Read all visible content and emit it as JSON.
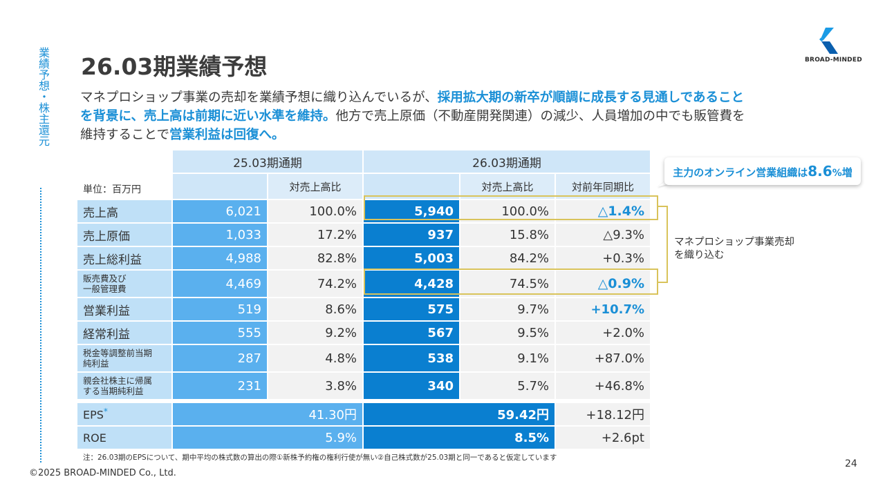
{
  "side_label": "業績予想・株主還元",
  "title": "26.03期業績予想",
  "logo_text": "BROAD-MINDED",
  "lead": {
    "p1": "マネプロショップ事業の売却を業績予想に織り込んでいるが、",
    "p2": "採用拡大期の新卒が順調に成長する見通しであること",
    "p3": "を背景に、売上高は前期に近い水準を維持。",
    "p4": "他方で売上原価（不動産開発関連）の減少、人員増加の中でも販管費を",
    "p5": "維持することで",
    "p6": "営業利益は回復へ。"
  },
  "table": {
    "period_prev": "25.03期通期",
    "period_curr": "26.03期通期",
    "unit": "単位：百万円",
    "col_ratio_prev": "対売上高比",
    "col_ratio_curr": "対売上高比",
    "col_yoy": "対前年同期比",
    "rows": [
      {
        "label": "売上高",
        "v25": "6,021",
        "r25": "100.0%",
        "v26": "5,940",
        "r26": "100.0%",
        "yoy": "△1.4%"
      },
      {
        "label": "売上原価",
        "v25": "1,033",
        "r25": "17.2%",
        "v26": "937",
        "r26": "15.8%",
        "yoy": "△9.3%"
      },
      {
        "label": "売上総利益",
        "v25": "4,988",
        "r25": "82.8%",
        "v26": "5,003",
        "r26": "84.2%",
        "yoy": "+0.3%"
      },
      {
        "label_1": "販売費及び",
        "label_2": "一般管理費",
        "v25": "4,469",
        "r25": "74.2%",
        "v26": "4,428",
        "r26": "74.5%",
        "yoy": "△0.9%"
      },
      {
        "label": "営業利益",
        "v25": "519",
        "r25": "8.6%",
        "v26": "575",
        "r26": "9.7%",
        "yoy": "+10.7%"
      },
      {
        "label": "経常利益",
        "v25": "555",
        "r25": "9.2%",
        "v26": "567",
        "r26": "9.5%",
        "yoy": "+2.0%"
      },
      {
        "label_1": "税金等調整前当期",
        "label_2": "純利益",
        "v25": "287",
        "r25": "4.8%",
        "v26": "538",
        "r26": "9.1%",
        "yoy": "+87.0%"
      },
      {
        "label_1": "親会社株主に帰属",
        "label_2": "する当期純利益",
        "v25": "231",
        "r25": "3.8%",
        "v26": "340",
        "r26": "5.7%",
        "yoy": "+46.8%"
      }
    ],
    "eps": {
      "label": "EPS",
      "mark": "*",
      "v25": "41.30円",
      "v26": "59.42円",
      "yoy": "+18.12円"
    },
    "roe": {
      "label": "ROE",
      "v25": "5.9%",
      "v26": "8.5%",
      "yoy": "+2.6pt"
    }
  },
  "callout": {
    "pre": "主力のオンライン営業組織は",
    "num": "8.6",
    "unit": "%",
    "post": "増"
  },
  "side_note": {
    "line1": "マネプロショップ事業売却",
    "line2": "を織り込む"
  },
  "footnote": "注：26.03期のEPSについて、期中平均の株式数の算出の際①新株予約権の権利行使が無い②自己株式数が25.03期と同一であると仮定しています",
  "copyright": "©2025 BROAD-MINDED Co., Ltd.",
  "page_number": "24",
  "colors": {
    "accent": "#1a8fd6",
    "prev_value": "#5ab0ee",
    "curr_value": "#0a7fd0",
    "highlight_box": "#d9c35a"
  }
}
